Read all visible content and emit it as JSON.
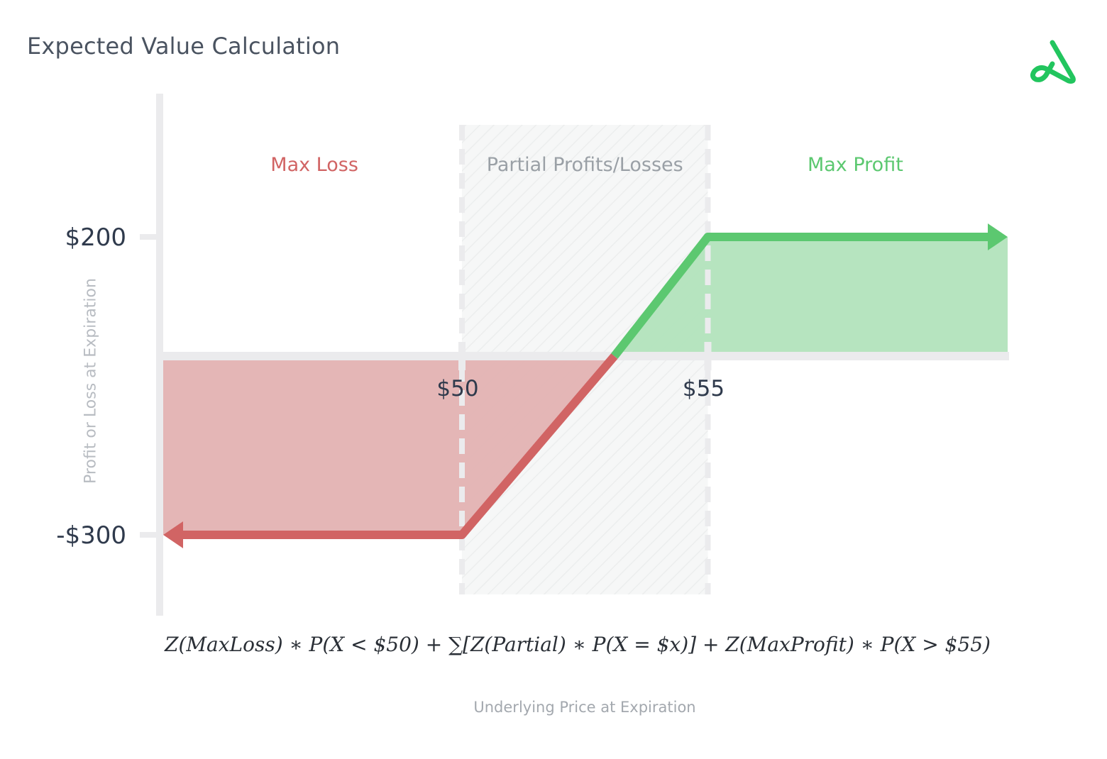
{
  "title": "Expected Value Calculation",
  "logo_icon": "triangle-loop-logo",
  "colors": {
    "loss": "#d16464",
    "loss_fill": "#e3b2b2",
    "profit": "#5cc870",
    "profit_fill": "#b2e3bc",
    "axis": "#ebebed",
    "text_dark": "#2f3a4c",
    "partial_text": "#9aa0a6"
  },
  "chart_data": {
    "type": "line",
    "title": "Expected Value Calculation",
    "xlabel": "Underlying Price at Expiration",
    "ylabel": "Profit or Loss at Expiration",
    "x_ticks": [
      {
        "value": 50,
        "label": "$50"
      },
      {
        "value": 55,
        "label": "$55"
      }
    ],
    "y_ticks": [
      {
        "value": 200,
        "label": "$200"
      },
      {
        "value": -300,
        "label": "-$300"
      }
    ],
    "series": [
      {
        "points": [
          [
            44,
            -300
          ],
          [
            50,
            -300
          ],
          [
            53.1,
            0
          ]
        ],
        "color": "#d16464"
      },
      {
        "points": [
          [
            53.1,
            0
          ],
          [
            55,
            200
          ],
          [
            61,
            200
          ]
        ],
        "color": "#5cc870"
      }
    ],
    "regions": [
      {
        "label": "Max Loss",
        "x_from": 44,
        "x_to": 50,
        "color": "#d16464"
      },
      {
        "label": "Partial Profits/Losses",
        "x_from": 50,
        "x_to": 55,
        "color": "#9aa0a6"
      },
      {
        "label": "Max Profit",
        "x_from": 55,
        "x_to": 61,
        "color": "#5cc870"
      }
    ],
    "formula": "Z(MaxLoss) ∗ P(X < $50) + ∑[Z(Partial) ∗ P(X = $x)] + Z(MaxProfit) ∗ P(X > $55)",
    "grid": false,
    "legend": "none"
  }
}
